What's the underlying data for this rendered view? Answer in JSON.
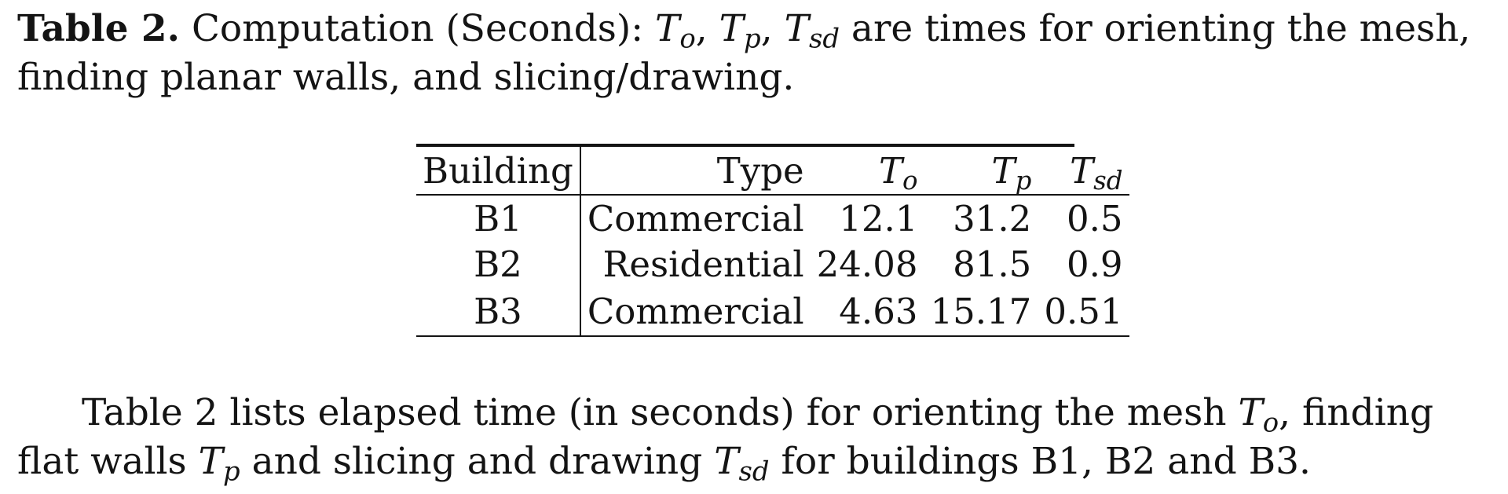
{
  "caption": {
    "label": "Table 2.",
    "text_before": "Computation (Seconds):",
    "text_after": "are times for orienting the mesh, finding planar walls, and slicing/drawing.",
    "symbols": {
      "t_o_base": "T",
      "t_o_sub": "o",
      "t_p_base": "T",
      "t_p_sub": "p",
      "t_sd_base": "T",
      "t_sd_sub": "sd"
    },
    "sep": ","
  },
  "table": {
    "headers": {
      "building": "Building",
      "type": "Type",
      "t_o_base": "T",
      "t_o_sub": "o",
      "t_p_base": "T",
      "t_p_sub": "p",
      "t_sd_base": "T",
      "t_sd_sub": "sd"
    },
    "rows": [
      {
        "building": "B1",
        "type": "Commercial",
        "t_o": "12.1",
        "t_p": "31.2",
        "t_sd": "0.5"
      },
      {
        "building": "B2",
        "type": "Residential",
        "t_o": "24.08",
        "t_p": "81.5",
        "t_sd": "0.9"
      },
      {
        "building": "B3",
        "type": "Commercial",
        "t_o": "4.63",
        "t_p": "15.17",
        "t_sd": "0.51"
      }
    ]
  },
  "paragraph": {
    "part1": "Table 2 lists elapsed time (in seconds) for orienting the mesh",
    "part2": ", finding flat walls",
    "part3": "and slicing and drawing",
    "part4": "for buildings B1, B2 and B3.",
    "t_o_base": "T",
    "t_o_sub": "o",
    "t_p_base": "T",
    "t_p_sub": "p",
    "t_sd_base": "T",
    "t_sd_sub": "sd"
  }
}
